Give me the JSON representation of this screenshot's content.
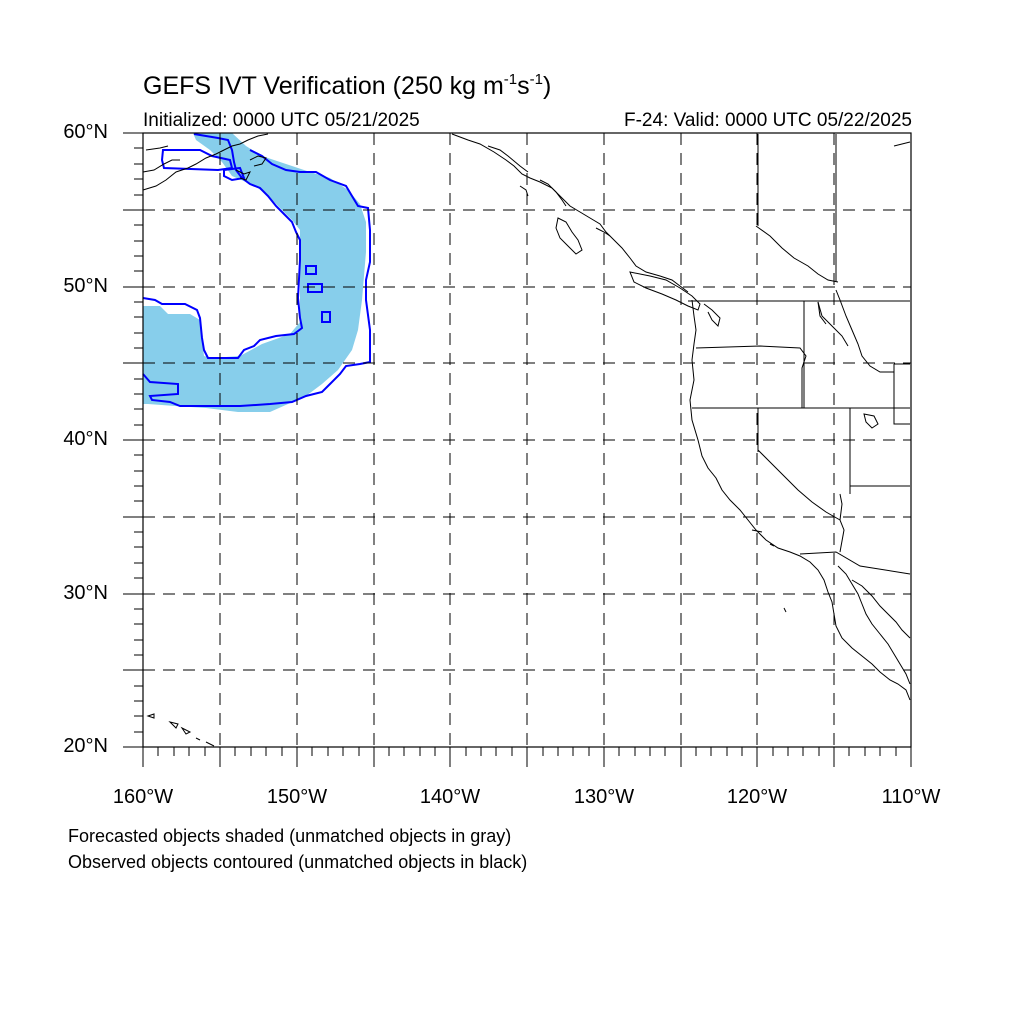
{
  "title": {
    "main": "GEFS IVT Verification (250 kg m",
    "exp1": "-1",
    "mid": "s",
    "exp2": "-1",
    "end": ")"
  },
  "initialized": "Initialized: 0000 UTC 05/21/2025",
  "valid": "F-24: Valid: 0000 UTC 05/22/2025",
  "lat_labels": [
    "60°N",
    "50°N",
    "40°N",
    "30°N",
    "20°N"
  ],
  "lon_labels": [
    "160°W",
    "150°W",
    "140°W",
    "130°W",
    "120°W",
    "110°W"
  ],
  "notes": [
    "Forecasted objects shaded (unmatched objects in gray)",
    "Observed objects contoured (unmatched objects in black)"
  ],
  "map": {
    "lon_range": [
      -160,
      -110
    ],
    "lat_range": [
      20,
      60
    ],
    "grid_spacing_deg": 5,
    "gridline_style": "dashed",
    "forecast_fill_color": "#87ceeb",
    "observed_contour_color": "#0000ff",
    "coastline_color": "#000000"
  }
}
